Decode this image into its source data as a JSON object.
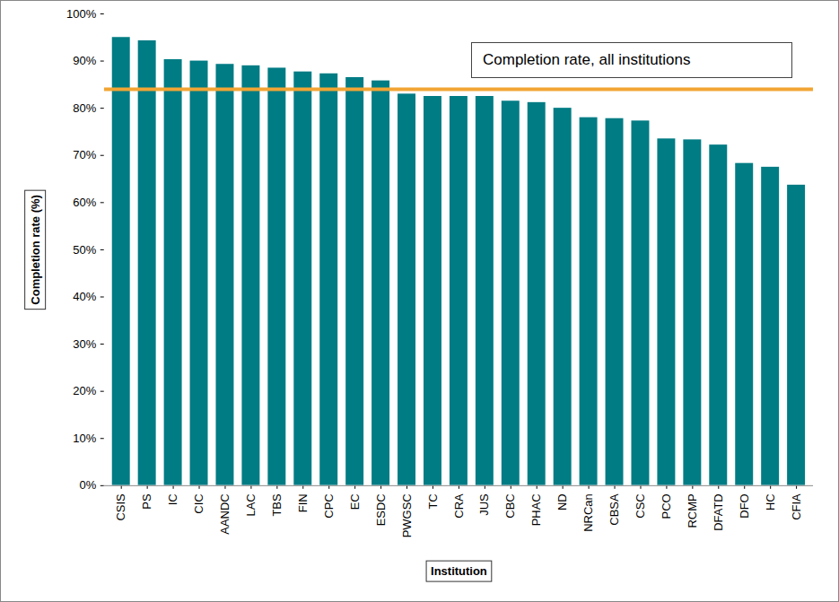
{
  "chart_data": {
    "type": "bar",
    "x_label": "Institution",
    "y_label": "Completion rate (%)",
    "categories": [
      "CSIS",
      "PS",
      "IC",
      "CIC",
      "AANDC",
      "LAC",
      "TBS",
      "FIN",
      "CPC",
      "EC",
      "ESDC",
      "PWGSC",
      "TC",
      "CRA",
      "JUS",
      "CBC",
      "PHAC",
      "ND",
      "NRCan",
      "CBSA",
      "CSC",
      "PCO",
      "RCMP",
      "DFATD",
      "DFO",
      "HC",
      "CFIA"
    ],
    "values": [
      95,
      94.3,
      90.3,
      90,
      89.3,
      89,
      88.5,
      87.7,
      87.3,
      86.5,
      85.8,
      83,
      82.5,
      82.5,
      82.5,
      81.5,
      81.2,
      80,
      78,
      77.8,
      77.3,
      73.5,
      73.3,
      72.2,
      68.3,
      67.5,
      63.7
    ],
    "color": "#007c84",
    "reference_line": {
      "value": 84,
      "label": "Completion rate, all institutions",
      "color": "#f2a534"
    },
    "ylim": [
      0,
      100
    ],
    "yticks": [
      {
        "value": 0,
        "label": "0%"
      },
      {
        "value": 10,
        "label": "10%"
      },
      {
        "value": 20,
        "label": "20%"
      },
      {
        "value": 30,
        "label": "30%"
      },
      {
        "value": 40,
        "label": "40%"
      },
      {
        "value": 50,
        "label": "50%"
      },
      {
        "value": 60,
        "label": "60%"
      },
      {
        "value": 70,
        "label": "70%"
      },
      {
        "value": 80,
        "label": "80%"
      },
      {
        "value": 90,
        "label": "90%"
      },
      {
        "value": 100,
        "label": "100%"
      }
    ],
    "grid": false
  }
}
